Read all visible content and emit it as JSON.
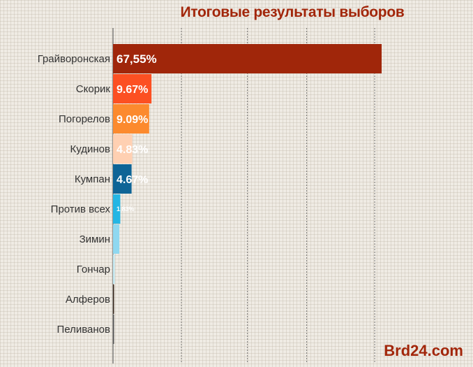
{
  "chart_data": {
    "type": "bar",
    "orientation": "horizontal",
    "title": "Итоговые результаты выборов",
    "xlabel": "",
    "ylabel": "",
    "xlim": [
      0,
      70
    ],
    "grid": true,
    "categories": [
      "Грайворонская",
      "Скорик",
      "Погорелов",
      "Кудинов",
      "Кумпан",
      "Против всех",
      "Зимин",
      "Гончар",
      "Алферов",
      "Пеливанов"
    ],
    "values": [
      67.55,
      9.67,
      9.09,
      4.83,
      4.67,
      1.83,
      1.6,
      0.45,
      0.25,
      0.1
    ],
    "value_labels": [
      "67,55%",
      "9.67%",
      "9.09%",
      "4.83%",
      "4.67%",
      "1.83%",
      "",
      "",
      "",
      ""
    ],
    "colors": [
      "#a0260a",
      "#fc5022",
      "#fc8a2e",
      "#ffd0b2",
      "#0e6496",
      "#24b6e4",
      "#8fd8f0",
      "#c4e8f0",
      "#3a2a1e",
      "#555555"
    ]
  },
  "watermark": "Brd24.com"
}
